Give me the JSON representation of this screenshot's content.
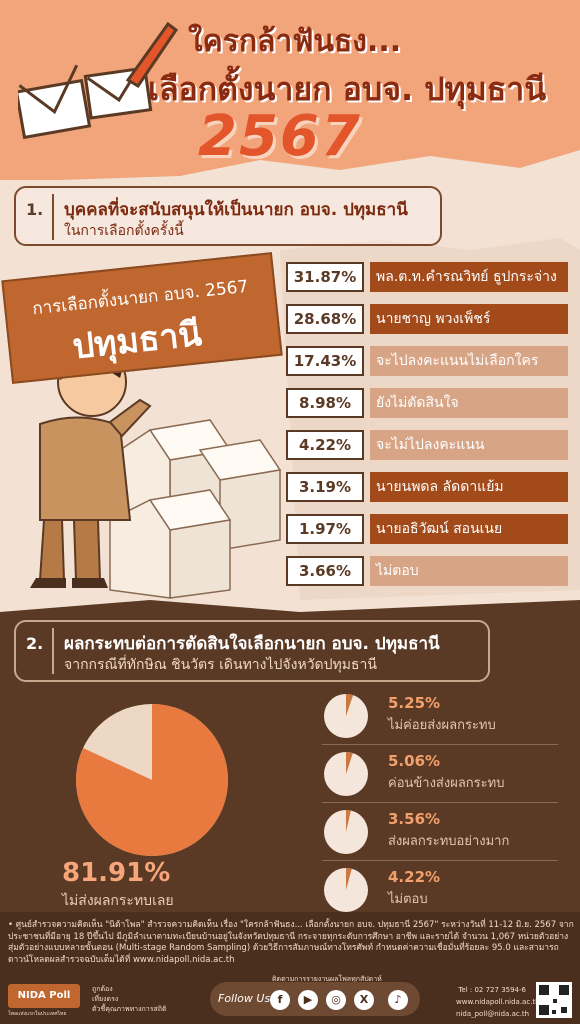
{
  "header": {
    "title_line1": "ใครกล้าฟันธง...",
    "title_line2": "เลือกตั้งนายก อบจ. ปทุมธานี",
    "year": "2567"
  },
  "section1": {
    "number": "1.",
    "title": "บุคคลที่จะสนับสนุนให้เป็นนายก อบจ. ปทุมธานี",
    "subtitle": "ในการเลือกตั้งครั้งนี้"
  },
  "banner": {
    "line1": "การเลือกตั้งนายก อบจ. 2567",
    "line2": "ปทุมธานี"
  },
  "results": [
    {
      "pct": "31.87%",
      "name": "พล.ต.ท.คำรณวิทย์ ธูปกระจ่าง",
      "style": "dark"
    },
    {
      "pct": "28.68%",
      "name": "นายชาญ พวงเพ็ชร์",
      "style": "dark"
    },
    {
      "pct": "17.43%",
      "name": "จะไปลงคะแนนไม่เลือกใคร",
      "style": "light"
    },
    {
      "pct": "8.98%",
      "name": "ยังไม่ตัดสินใจ",
      "style": "light"
    },
    {
      "pct": "4.22%",
      "name": "จะไม่ไปลงคะแนน",
      "style": "light"
    },
    {
      "pct": "3.19%",
      "name": "นายนพดล ลัดดาแย้ม",
      "style": "dark"
    },
    {
      "pct": "1.97%",
      "name": "นายอธิวัฒน์ สอนเนย",
      "style": "dark"
    },
    {
      "pct": "3.66%",
      "name": "ไม่ตอบ",
      "style": "light"
    }
  ],
  "section2": {
    "number": "2.",
    "title": "ผลกระทบต่อการตัดสินใจเลือกนายก อบจ. ปทุมธานี",
    "subtitle": "จากกรณีที่ทักษิณ ชินวัตร เดินทางไปจังหวัดปทุมธานี"
  },
  "impact_main": {
    "pct": "81.91%",
    "value": 81.91,
    "label": "ไม่ส่งผลกระทบเลย"
  },
  "impact_items": [
    {
      "pct": "5.25%",
      "value": 5.25,
      "label": "ไม่ค่อยส่งผลกระทบ"
    },
    {
      "pct": "5.06%",
      "value": 5.06,
      "label": "ค่อนข้างส่งผลกระทบ"
    },
    {
      "pct": "3.56%",
      "value": 3.56,
      "label": "ส่งผลกระทบอย่างมาก"
    },
    {
      "pct": "4.22%",
      "value": 4.22,
      "label": "ไม่ตอบ"
    }
  ],
  "footer": {
    "note": "• ศูนย์สำรวจความคิดเห็น \"นิด้าโพล\" สำรวจความคิดเห็น เรื่อง \"ใครกล้าฟันธง... เลือกตั้งนายก อบจ. ปทุมธานี 2567\" ระหว่างวันที่ 11-12 มิ.ย. 2567 จากประชาชนที่มีอายุ 18 ปีขึ้นไป มีภูมิลำเนาตามทะเบียนบ้านอยู่ในจังหวัดปทุมธานี กระจายทุกระดับการศึกษา อาชีพ และรายได้ จำนวน 1,067 หน่วยตัวอย่าง สุ่มตัวอย่างแบบหลายขั้นตอน (Multi-stage Random Sampling) ด้วยวิธีการสัมภาษณ์ทางโทรศัพท์ กำหนดค่าความเชื่อมั่นที่ร้อยละ 95.0 และสามารถดาวน์โหลดผลสำรวจฉบับเต็มได้ที่ www.nidapoll.nida.ac.th",
    "logo": "NIDA Poll",
    "logo_sub": "โพลแห่งแรกในประเทศไทย",
    "links": [
      "ถูกต้อง",
      "เที่ยงตรง",
      "ตัวชี้คุณภาพทางการสถิติ"
    ],
    "follow_title": "ติดตามการรายงานผลโพลทุกสัปดาห์",
    "follow_us": "Follow Us",
    "social": [
      "f",
      "▶",
      "◎",
      "X",
      "♪"
    ],
    "tel": "Tel : 02 727 3594-6",
    "web": "www.nidapoll.nida.ac.th",
    "email": "nida_poll@nida.ac.th"
  },
  "colors": {
    "accent": "#e3552a",
    "brown": "#5b3a25",
    "orange": "#f2a57a",
    "dark_row": "#a34a1a",
    "light_row": "#d7a486"
  }
}
